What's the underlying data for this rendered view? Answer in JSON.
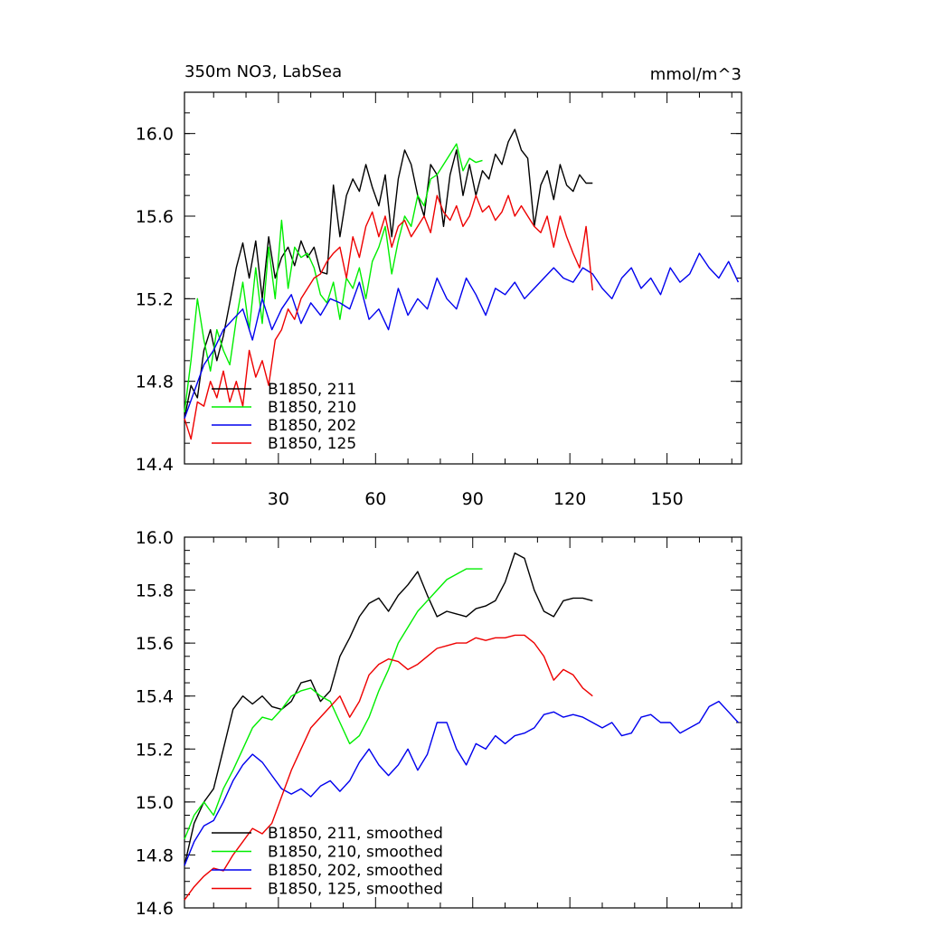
{
  "colors": {
    "black": "#000000",
    "green": "#00ee00",
    "blue": "#0000ee",
    "red": "#ee0000"
  },
  "chart_data": [
    {
      "type": "line",
      "title": "350m NO3, LabSea",
      "units": "mmol/m^3",
      "xlim": [
        1,
        173
      ],
      "ylim": [
        14.4,
        16.2
      ],
      "yticks": [
        "14.4",
        "14.8",
        "15.2",
        "15.6",
        "16.0"
      ],
      "xticks": [
        "30",
        "60",
        "90",
        "120",
        "150"
      ],
      "series": [
        {
          "name": "B1850, 211",
          "color": "#000000",
          "x": [
            1,
            3,
            5,
            7,
            9,
            11,
            13,
            15,
            17,
            19,
            21,
            23,
            25,
            27,
            29,
            31,
            33,
            35,
            37,
            39,
            41,
            43,
            45,
            47,
            49,
            51,
            53,
            55,
            57,
            59,
            61,
            63,
            65,
            67,
            69,
            71,
            73,
            75,
            77,
            79,
            81,
            83,
            85,
            87,
            89,
            91,
            93,
            95,
            97,
            99,
            101,
            103,
            105,
            107,
            109,
            111,
            113,
            115,
            117,
            119,
            121,
            123,
            125,
            127
          ],
          "y": [
            14.62,
            14.78,
            14.72,
            14.95,
            15.05,
            14.9,
            15.02,
            15.18,
            15.35,
            15.47,
            15.3,
            15.48,
            15.2,
            15.5,
            15.3,
            15.4,
            15.45,
            15.36,
            15.48,
            15.4,
            15.45,
            15.33,
            15.32,
            15.75,
            15.5,
            15.7,
            15.78,
            15.72,
            15.85,
            15.74,
            15.65,
            15.8,
            15.5,
            15.78,
            15.92,
            15.85,
            15.7,
            15.6,
            15.85,
            15.8,
            15.55,
            15.8,
            15.92,
            15.7,
            15.85,
            15.7,
            15.82,
            15.78,
            15.9,
            15.85,
            15.96,
            16.02,
            15.92,
            15.88,
            15.55,
            15.75,
            15.82,
            15.68,
            15.85,
            15.75,
            15.72,
            15.8,
            15.76,
            15.76
          ]
        },
        {
          "name": "B1850, 210",
          "color": "#00ee00",
          "x": [
            1,
            3,
            5,
            7,
            9,
            11,
            13,
            15,
            17,
            19,
            21,
            23,
            25,
            27,
            29,
            31,
            33,
            35,
            37,
            39,
            41,
            43,
            45,
            47,
            49,
            51,
            53,
            55,
            57,
            59,
            61,
            63,
            65,
            67,
            69,
            71,
            73,
            75,
            77,
            79,
            81,
            83,
            85,
            87,
            89,
            91,
            93
          ],
          "y": [
            14.65,
            14.9,
            15.2,
            15.0,
            14.85,
            15.05,
            14.95,
            14.88,
            15.1,
            15.28,
            15.05,
            15.35,
            15.08,
            15.45,
            15.2,
            15.58,
            15.25,
            15.45,
            15.4,
            15.42,
            15.35,
            15.22,
            15.18,
            15.28,
            15.1,
            15.3,
            15.25,
            15.35,
            15.2,
            15.38,
            15.45,
            15.55,
            15.32,
            15.48,
            15.6,
            15.55,
            15.7,
            15.65,
            15.78,
            15.8,
            15.85,
            15.9,
            15.95,
            15.82,
            15.88,
            15.86,
            15.87
          ]
        },
        {
          "name": "B1850, 202",
          "color": "#0000ee",
          "x": [
            1,
            4,
            7,
            10,
            13,
            16,
            19,
            22,
            25,
            28,
            31,
            34,
            37,
            40,
            43,
            46,
            49,
            52,
            55,
            58,
            61,
            64,
            67,
            70,
            73,
            76,
            79,
            82,
            85,
            88,
            91,
            94,
            97,
            100,
            103,
            106,
            109,
            112,
            115,
            118,
            121,
            124,
            127,
            130,
            133,
            136,
            139,
            142,
            145,
            148,
            151,
            154,
            157,
            160,
            163,
            166,
            169,
            172
          ],
          "y": [
            14.62,
            14.75,
            14.88,
            14.95,
            15.05,
            15.1,
            15.15,
            15.0,
            15.2,
            15.05,
            15.15,
            15.22,
            15.08,
            15.18,
            15.12,
            15.2,
            15.18,
            15.15,
            15.28,
            15.1,
            15.15,
            15.05,
            15.25,
            15.12,
            15.2,
            15.15,
            15.3,
            15.2,
            15.15,
            15.3,
            15.22,
            15.12,
            15.25,
            15.22,
            15.28,
            15.2,
            15.25,
            15.3,
            15.35,
            15.3,
            15.28,
            15.35,
            15.32,
            15.25,
            15.2,
            15.3,
            15.35,
            15.25,
            15.3,
            15.22,
            15.35,
            15.28,
            15.32,
            15.42,
            15.35,
            15.3,
            15.38,
            15.28
          ]
        },
        {
          "name": "B1850, 125",
          "color": "#ee0000",
          "x": [
            1,
            3,
            5,
            7,
            9,
            11,
            13,
            15,
            17,
            19,
            21,
            23,
            25,
            27,
            29,
            31,
            33,
            35,
            37,
            39,
            41,
            43,
            45,
            47,
            49,
            51,
            53,
            55,
            57,
            59,
            61,
            63,
            65,
            67,
            69,
            71,
            73,
            75,
            77,
            79,
            81,
            83,
            85,
            87,
            89,
            91,
            93,
            95,
            97,
            99,
            101,
            103,
            105,
            107,
            109,
            111,
            113,
            115,
            117,
            119,
            121,
            123,
            125,
            127
          ],
          "y": [
            14.62,
            14.52,
            14.7,
            14.68,
            14.8,
            14.72,
            14.85,
            14.7,
            14.8,
            14.68,
            14.95,
            14.82,
            14.9,
            14.78,
            15.0,
            15.05,
            15.15,
            15.1,
            15.2,
            15.25,
            15.3,
            15.32,
            15.38,
            15.42,
            15.45,
            15.3,
            15.5,
            15.4,
            15.55,
            15.62,
            15.5,
            15.6,
            15.45,
            15.55,
            15.58,
            15.5,
            15.55,
            15.6,
            15.52,
            15.7,
            15.62,
            15.58,
            15.65,
            15.55,
            15.6,
            15.7,
            15.62,
            15.65,
            15.58,
            15.62,
            15.7,
            15.6,
            15.65,
            15.6,
            15.55,
            15.52,
            15.6,
            15.45,
            15.6,
            15.5,
            15.42,
            15.35,
            15.55,
            15.24
          ]
        }
      ]
    },
    {
      "type": "line",
      "xlim": [
        1,
        173
      ],
      "ylim": [
        14.6,
        16.0
      ],
      "yticks": [
        "14.6",
        "14.8",
        "15.0",
        "15.2",
        "15.4",
        "15.6",
        "15.8",
        "16.0"
      ],
      "series": [
        {
          "name": "B1850, 211, smoothed",
          "color": "#000000",
          "x": [
            1,
            4,
            7,
            10,
            13,
            16,
            19,
            22,
            25,
            28,
            31,
            34,
            37,
            40,
            43,
            46,
            49,
            52,
            55,
            58,
            61,
            64,
            67,
            70,
            73,
            76,
            79,
            82,
            85,
            88,
            91,
            94,
            97,
            100,
            103,
            106,
            109,
            112,
            115,
            118,
            121,
            124,
            127
          ],
          "y": [
            14.76,
            14.92,
            15.0,
            15.05,
            15.2,
            15.35,
            15.4,
            15.37,
            15.4,
            15.36,
            15.35,
            15.38,
            15.45,
            15.46,
            15.38,
            15.42,
            15.55,
            15.62,
            15.7,
            15.75,
            15.77,
            15.72,
            15.78,
            15.82,
            15.87,
            15.78,
            15.7,
            15.72,
            15.71,
            15.7,
            15.73,
            15.74,
            15.76,
            15.83,
            15.94,
            15.92,
            15.8,
            15.72,
            15.7,
            15.76,
            15.77,
            15.77,
            15.76
          ]
        },
        {
          "name": "B1850, 210, smoothed",
          "color": "#00ee00",
          "x": [
            1,
            4,
            7,
            10,
            13,
            16,
            19,
            22,
            25,
            28,
            31,
            34,
            37,
            40,
            43,
            46,
            49,
            52,
            55,
            58,
            61,
            64,
            67,
            70,
            73,
            76,
            79,
            82,
            85,
            88,
            91,
            93
          ],
          "y": [
            14.86,
            14.95,
            15.0,
            14.95,
            15.05,
            15.12,
            15.2,
            15.28,
            15.32,
            15.31,
            15.35,
            15.4,
            15.42,
            15.43,
            15.4,
            15.38,
            15.3,
            15.22,
            15.25,
            15.32,
            15.42,
            15.5,
            15.6,
            15.66,
            15.72,
            15.76,
            15.8,
            15.84,
            15.86,
            15.88,
            15.88,
            15.88
          ]
        },
        {
          "name": "B1850, 202, smoothed",
          "color": "#0000ee",
          "x": [
            1,
            4,
            7,
            10,
            13,
            16,
            19,
            22,
            25,
            28,
            31,
            34,
            37,
            40,
            43,
            46,
            49,
            52,
            55,
            58,
            61,
            64,
            67,
            70,
            73,
            76,
            79,
            82,
            85,
            88,
            91,
            94,
            97,
            100,
            103,
            106,
            109,
            112,
            115,
            118,
            121,
            124,
            127,
            130,
            133,
            136,
            139,
            142,
            145,
            148,
            151,
            154,
            157,
            160,
            163,
            166,
            169,
            172
          ],
          "y": [
            14.76,
            14.85,
            14.91,
            14.93,
            15.0,
            15.08,
            15.14,
            15.18,
            15.15,
            15.1,
            15.05,
            15.03,
            15.05,
            15.02,
            15.06,
            15.08,
            15.04,
            15.08,
            15.15,
            15.2,
            15.14,
            15.1,
            15.14,
            15.2,
            15.12,
            15.18,
            15.3,
            15.3,
            15.2,
            15.14,
            15.22,
            15.2,
            15.25,
            15.22,
            15.25,
            15.26,
            15.28,
            15.33,
            15.34,
            15.32,
            15.33,
            15.32,
            15.3,
            15.28,
            15.3,
            15.25,
            15.26,
            15.32,
            15.33,
            15.3,
            15.3,
            15.26,
            15.28,
            15.3,
            15.36,
            15.38,
            15.34,
            15.3
          ]
        },
        {
          "name": "B1850, 125, smoothed",
          "color": "#ee0000",
          "x": [
            1,
            4,
            7,
            10,
            13,
            16,
            19,
            22,
            25,
            28,
            31,
            34,
            37,
            40,
            43,
            46,
            49,
            52,
            55,
            58,
            61,
            64,
            67,
            70,
            73,
            76,
            79,
            82,
            85,
            88,
            91,
            94,
            97,
            100,
            103,
            106,
            109,
            112,
            115,
            118,
            121,
            124,
            127
          ],
          "y": [
            14.63,
            14.68,
            14.72,
            14.75,
            14.74,
            14.8,
            14.85,
            14.9,
            14.88,
            14.92,
            15.02,
            15.12,
            15.2,
            15.28,
            15.32,
            15.36,
            15.4,
            15.32,
            15.38,
            15.48,
            15.52,
            15.54,
            15.53,
            15.5,
            15.52,
            15.55,
            15.58,
            15.59,
            15.6,
            15.6,
            15.62,
            15.61,
            15.62,
            15.62,
            15.63,
            15.63,
            15.6,
            15.55,
            15.46,
            15.5,
            15.48,
            15.43,
            15.4
          ]
        }
      ]
    }
  ]
}
